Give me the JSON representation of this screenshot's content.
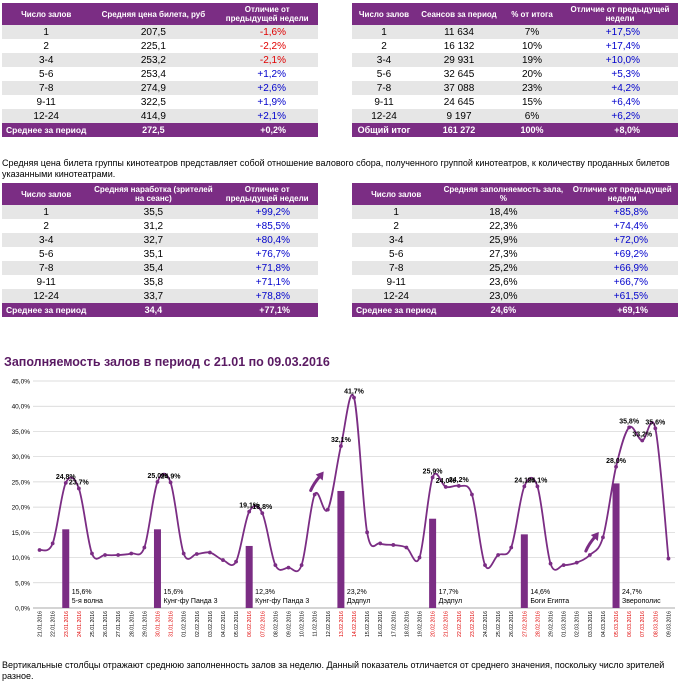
{
  "table1": {
    "headers": [
      "Число залов",
      "Средняя цена билета, руб",
      "Отличие от предыдущей недели"
    ],
    "rows": [
      {
        "halls": "1",
        "value": "207,5",
        "diff": "-1,6%",
        "neg": true
      },
      {
        "halls": "2",
        "value": "225,1",
        "diff": "-2,2%",
        "neg": true
      },
      {
        "halls": "3-4",
        "value": "253,2",
        "diff": "-2,1%",
        "neg": true
      },
      {
        "halls": "5-6",
        "value": "253,4",
        "diff": "+1,2%",
        "neg": false
      },
      {
        "halls": "7-8",
        "value": "274,9",
        "diff": "+2,6%",
        "neg": false
      },
      {
        "halls": "9-11",
        "value": "322,5",
        "diff": "+1,9%",
        "neg": false
      },
      {
        "halls": "12-24",
        "value": "414,9",
        "diff": "+2,1%",
        "neg": false
      }
    ],
    "footer": {
      "label": "Среднее за период",
      "value": "272,5",
      "diff": "+0,2%"
    }
  },
  "table2": {
    "headers": [
      "Число залов",
      "Сеансов за период",
      "% от итога",
      "Отличие от предыдущей недели"
    ],
    "rows": [
      {
        "halls": "1",
        "value": "11 634",
        "pct": "7%",
        "diff": "+17,5%"
      },
      {
        "halls": "2",
        "value": "16 132",
        "pct": "10%",
        "diff": "+17,4%"
      },
      {
        "halls": "3-4",
        "value": "29 931",
        "pct": "19%",
        "diff": "+10,0%"
      },
      {
        "halls": "5-6",
        "value": "32 645",
        "pct": "20%",
        "diff": "+5,3%"
      },
      {
        "halls": "7-8",
        "value": "37 088",
        "pct": "23%",
        "diff": "+4,2%"
      },
      {
        "halls": "9-11",
        "value": "24 645",
        "pct": "15%",
        "diff": "+6,4%"
      },
      {
        "halls": "12-24",
        "value": "9 197",
        "pct": "6%",
        "diff": "+6,2%"
      }
    ],
    "footer": {
      "label": "Общий итог",
      "value": "161 272",
      "pct": "100%",
      "diff": "+8,0%"
    }
  },
  "note1": "Средняя цена билета группы кинотеатров представляет собой отношение валового сбора, полученного группой кинотеатров, к количеству проданных билетов указанными кинотеатрами.",
  "table3": {
    "headers": [
      "Число залов",
      "Средняя наработка (зрителей на сеанс)",
      "Отличие от предыдущей недели"
    ],
    "rows": [
      {
        "halls": "1",
        "value": "35,5",
        "diff": "+99,2%"
      },
      {
        "halls": "2",
        "value": "31,2",
        "diff": "+85,5%"
      },
      {
        "halls": "3-4",
        "value": "32,7",
        "diff": "+80,4%"
      },
      {
        "halls": "5-6",
        "value": "35,1",
        "diff": "+76,7%"
      },
      {
        "halls": "7-8",
        "value": "35,4",
        "diff": "+71,8%"
      },
      {
        "halls": "9-11",
        "value": "35,8",
        "diff": "+71,1%"
      },
      {
        "halls": "12-24",
        "value": "33,7",
        "diff": "+78,8%"
      }
    ],
    "footer": {
      "label": "Среднее за период",
      "value": "34,4",
      "diff": "+77,1%"
    }
  },
  "table4": {
    "headers": [
      "Число залов",
      "Средняя заполняемость зала, %",
      "Отличие от предыдущей недели"
    ],
    "rows": [
      {
        "halls": "1",
        "value": "18,4%",
        "diff": "+85,8%"
      },
      {
        "halls": "2",
        "value": "22,3%",
        "diff": "+74,4%"
      },
      {
        "halls": "3-4",
        "value": "25,9%",
        "diff": "+72,0%"
      },
      {
        "halls": "5-6",
        "value": "27,3%",
        "diff": "+69,2%"
      },
      {
        "halls": "7-8",
        "value": "25,2%",
        "diff": "+66,9%"
      },
      {
        "halls": "9-11",
        "value": "23,6%",
        "diff": "+66,7%"
      },
      {
        "halls": "12-24",
        "value": "23,0%",
        "diff": "+61,5%"
      }
    ],
    "footer": {
      "label": "Среднее за период",
      "value": "24,6%",
      "diff": "+69,1%"
    }
  },
  "chart_title": "Заполняемость залов в период с 21.01 по 09.03.2016",
  "note2": "Вертикальные столбцы отражают среднюю заполненность залов за неделю. Данный показатель отличается от среднего значения, поскольку число зрителей разное.",
  "colors": {
    "accent": "#7b2d84",
    "weekend": "#e00000",
    "positive": "#0000cc",
    "negative": "#e00000"
  },
  "chart_data": {
    "type": "line",
    "title": "Заполняемость залов в период с 21.01 по 09.03.2016",
    "ylim": [
      0,
      45
    ],
    "yticks": [
      "0,0%",
      "5,0%",
      "10,0%",
      "15,0%",
      "20,0%",
      "25,0%",
      "30,0%",
      "35,0%",
      "40,0%",
      "45,0%"
    ],
    "dates": [
      "21.01.2016",
      "22.01.2016",
      "23.01.2016",
      "24.01.2016",
      "25.01.2016",
      "26.01.2016",
      "27.01.2016",
      "28.01.2016",
      "29.01.2016",
      "30.01.2016",
      "31.01.2016",
      "01.02.2016",
      "02.02.2016",
      "03.02.2016",
      "04.02.2016",
      "05.02.2016",
      "06.02.2016",
      "07.02.2016",
      "08.02.2016",
      "09.02.2016",
      "10.02.2016",
      "11.02.2016",
      "12.02.2016",
      "13.02.2016",
      "14.02.2016",
      "15.02.2016",
      "16.02.2016",
      "17.02.2016",
      "18.02.2016",
      "19.02.2016",
      "20.02.2016",
      "21.02.2016",
      "22.02.2016",
      "23.02.2016",
      "24.02.2016",
      "25.02.2016",
      "26.02.2016",
      "27.02.2016",
      "28.02.2016",
      "29.02.2016",
      "01.03.2016",
      "02.03.2016",
      "03.03.2016",
      "04.03.2016",
      "05.03.2016",
      "06.03.2016",
      "07.03.2016",
      "08.03.2016",
      "09.03.2016"
    ],
    "weekend": [
      false,
      false,
      true,
      true,
      false,
      false,
      false,
      false,
      false,
      true,
      true,
      false,
      false,
      false,
      false,
      false,
      true,
      true,
      false,
      false,
      false,
      false,
      false,
      true,
      true,
      false,
      false,
      false,
      false,
      false,
      true,
      true,
      true,
      true,
      false,
      false,
      false,
      true,
      true,
      false,
      false,
      false,
      false,
      false,
      true,
      true,
      true,
      true,
      false
    ],
    "series": [
      {
        "name": "Заполняемость",
        "values": [
          11.5,
          12.8,
          24.8,
          23.7,
          10.8,
          10.5,
          10.5,
          10.8,
          12.0,
          25.0,
          24.9,
          10.8,
          10.7,
          11.0,
          9.5,
          9.2,
          19.1,
          18.8,
          8.5,
          8.0,
          8.5,
          22.5,
          19.5,
          32.1,
          41.7,
          15.0,
          12.8,
          12.5,
          12.0,
          10.0,
          25.9,
          24.0,
          24.2,
          22.5,
          8.5,
          10.5,
          12.0,
          24.1,
          24.1,
          8.8,
          8.5,
          9.0,
          10.5,
          14.0,
          28.0,
          35.8,
          33.2,
          35.6,
          9.8
        ]
      }
    ],
    "point_labels": [
      {
        "i": 2,
        "text": "24,8%"
      },
      {
        "i": 3,
        "text": "23,7%"
      },
      {
        "i": 9,
        "text": "25,0%"
      },
      {
        "i": 10,
        "text": "24,9%"
      },
      {
        "i": 16,
        "text": "19,1%"
      },
      {
        "i": 17,
        "text": "18,8%"
      },
      {
        "i": 23,
        "text": "32,1%"
      },
      {
        "i": 24,
        "text": "41,7%"
      },
      {
        "i": 30,
        "text": "25,9%"
      },
      {
        "i": 31,
        "text": "24,0%"
      },
      {
        "i": 32,
        "text": "24,2%"
      },
      {
        "i": 37,
        "text": "24,1%"
      },
      {
        "i": 38,
        "text": "24,1%"
      },
      {
        "i": 44,
        "text": "28,0%"
      },
      {
        "i": 45,
        "text": "35,8%"
      },
      {
        "i": 46,
        "text": "33,2%"
      },
      {
        "i": 47,
        "text": "35,6%"
      }
    ],
    "bars": [
      {
        "i": 2,
        "value": 15.6,
        "label": "15,6%",
        "film": "5-я волна"
      },
      {
        "i": 9,
        "value": 15.6,
        "label": "15,6%",
        "film": "Кунг-фу Панда 3"
      },
      {
        "i": 16,
        "value": 12.3,
        "label": "12,3%",
        "film": "Кунг-фу Панда 3"
      },
      {
        "i": 23,
        "value": 23.2,
        "label": "23,2%",
        "film": "Дэдпул"
      },
      {
        "i": 30,
        "value": 17.7,
        "label": "17,7%",
        "film": "Дэдпул"
      },
      {
        "i": 37,
        "value": 14.6,
        "label": "14,6%",
        "film": "Боги Египта"
      },
      {
        "i": 44,
        "value": 24.7,
        "label": "24,7%",
        "film": "Зверополис"
      }
    ],
    "arrows_at": [
      21,
      42
    ]
  }
}
